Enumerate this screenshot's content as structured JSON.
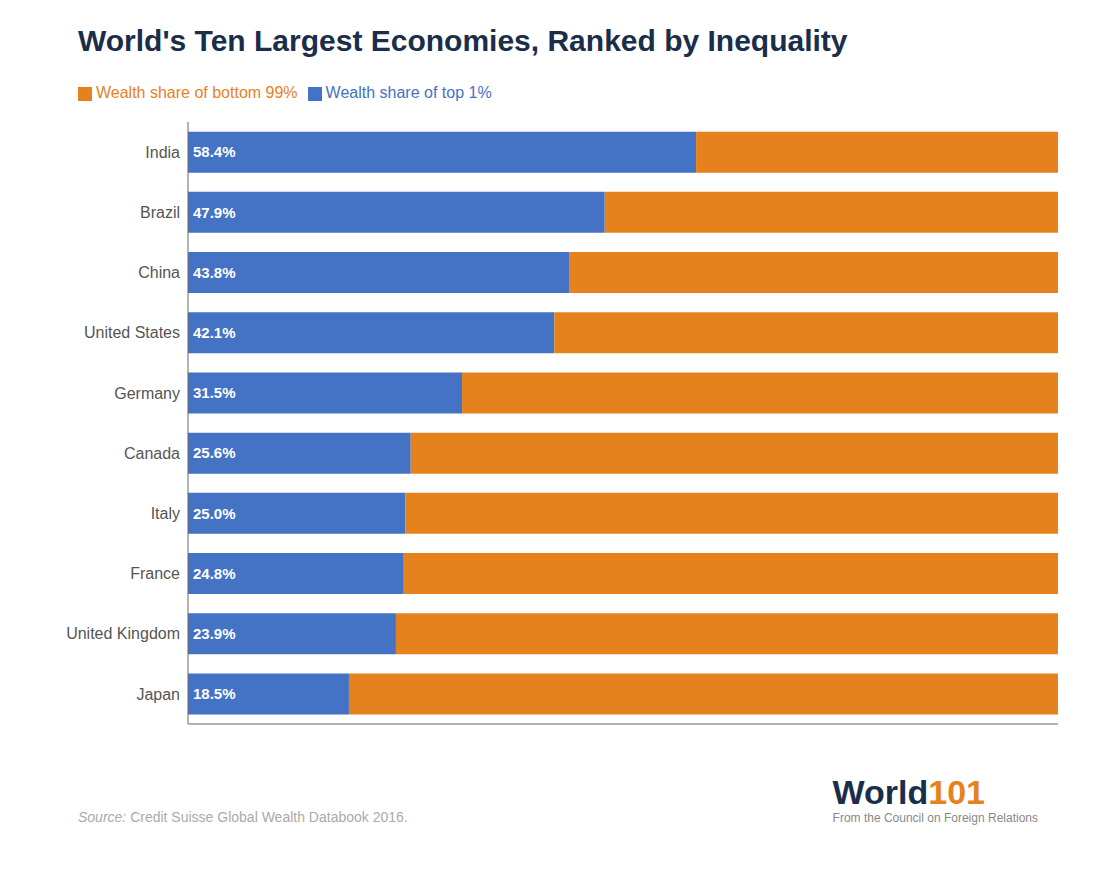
{
  "chart_data": {
    "type": "bar",
    "title": "World's Ten Largest Economies, Ranked by Inequality",
    "orientation": "horizontal",
    "stacked": true,
    "categories": [
      "India",
      "Brazil",
      "China",
      "United States",
      "Germany",
      "Canada",
      "Italy",
      "France",
      "United Kingdom",
      "Japan"
    ],
    "series": [
      {
        "name": "Wealth share of top 1%",
        "color": "#4472c4",
        "values": [
          58.4,
          47.9,
          43.8,
          42.1,
          31.5,
          25.6,
          25.0,
          24.8,
          23.9,
          18.5
        ],
        "data_labels": true,
        "value_labels": [
          "58.4%",
          "47.9%",
          "43.8%",
          "42.1%",
          "31.5%",
          "25.6%",
          "25.0%",
          "24.8%",
          "23.9%",
          "18.5%"
        ]
      },
      {
        "name": "Wealth share of bottom 99%",
        "color": "#e6821e",
        "values": [
          41.6,
          52.1,
          56.2,
          57.9,
          68.5,
          74.4,
          75.0,
          75.2,
          76.1,
          81.5
        ]
      }
    ],
    "xlim": [
      0,
      100
    ],
    "tick_labels": "y",
    "grid": false,
    "legend": "upper left",
    "annotations": [
      {
        "text": "Source:",
        "color": "#aaaaaa"
      },
      {
        "text": " Credit Suisse Global Wealth Databook 2016.",
        "color": "#aaaaaa"
      },
      {
        "text": "World",
        "color": "#1a2e4a"
      },
      {
        "text": "101",
        "color": "#e6821e"
      },
      {
        "text": "From the Council on Foreign Relations",
        "color": "#888888"
      }
    ]
  }
}
